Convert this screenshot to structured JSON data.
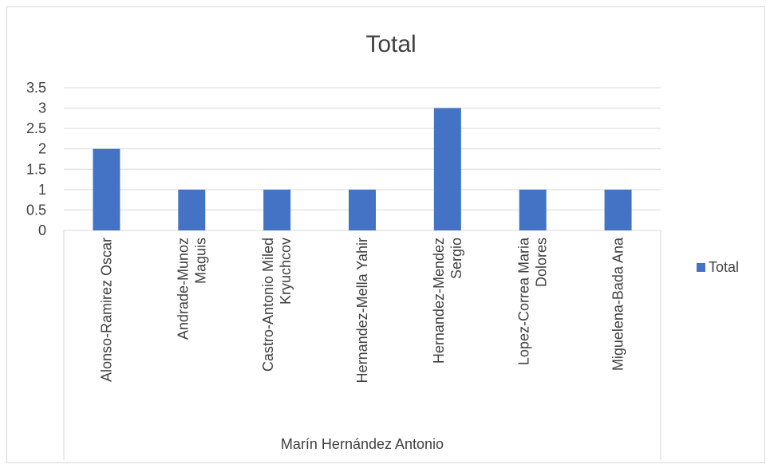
{
  "chart_data": {
    "type": "bar",
    "title": "Total",
    "xlabel": "Marín Hernández Antonio",
    "ylabel": "",
    "categories": [
      [
        "Alonso-Ramirez Oscar"
      ],
      [
        "Andrade-Munoz",
        "Maguis"
      ],
      [
        "Castro-Antonio Miled",
        "Kryuchcov"
      ],
      [
        "Hernandez-Mella Yahir"
      ],
      [
        "Hernandez-Mendez",
        "Sergio"
      ],
      [
        "Lopez-Correa Maria",
        "Dolores"
      ],
      [
        "Miguelena-Bada Ana"
      ]
    ],
    "series": [
      {
        "name": "Total",
        "values": [
          2,
          1,
          1,
          1,
          3,
          1,
          1
        ]
      }
    ],
    "ylim": [
      0,
      3.5
    ],
    "yticks": [
      "0",
      "0.5",
      "1",
      "1.5",
      "2",
      "2.5",
      "3",
      "3.5"
    ],
    "grid": true,
    "legend": {
      "position": "right",
      "label": "Total"
    },
    "colors": {
      "bar": "#4472c4",
      "grid": "#d9d9d9",
      "text": "#404040"
    }
  }
}
